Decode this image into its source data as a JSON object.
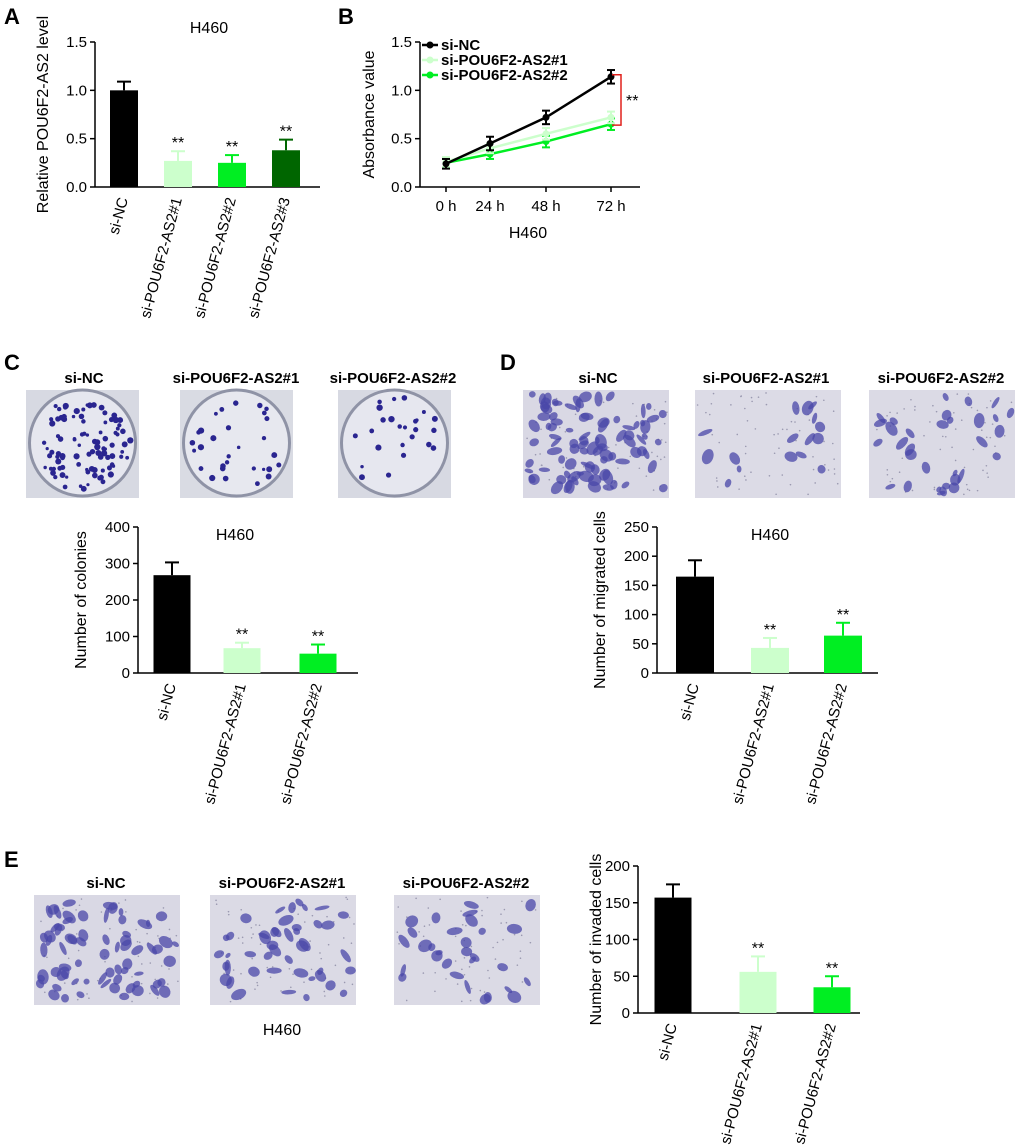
{
  "panels": {
    "A": {
      "letter": "A"
    },
    "B": {
      "letter": "B"
    },
    "C": {
      "letter": "C",
      "image_labels": [
        "si-NC",
        "si-POU6F2-AS2#1",
        "si-POU6F2-AS2#2"
      ]
    },
    "D": {
      "letter": "D",
      "image_labels": [
        "si-NC",
        "si-POU6F2-AS2#1",
        "si-POU6F2-AS2#2"
      ]
    },
    "E": {
      "letter": "E",
      "image_labels": [
        "si-NC",
        "si-POU6F2-AS2#1",
        "si-POU6F2-AS2#2"
      ],
      "caption": "H460"
    }
  },
  "colors": {
    "black": "#000000",
    "light_green": "#ccffcc",
    "green": "#00ee22",
    "dark_green": "#006600",
    "crystal_violet": "#3b3aa0",
    "sig_red": "#e0201c"
  },
  "chart_data": [
    {
      "id": "A",
      "type": "bar",
      "title": "H460",
      "ylabel": "Relative POU6F2-AS2 level",
      "ylim": [
        0,
        1.5
      ],
      "yticks": [
        0,
        0.5,
        1.0,
        1.5
      ],
      "ytick_labels": [
        "0.0",
        "0.5",
        "1.0",
        "1.5"
      ],
      "categories": [
        "si-NC",
        "si-POU6F2-AS2#1",
        "si-POU6F2-AS2#2",
        "si-POU6F2-AS2#3"
      ],
      "values": [
        1.0,
        0.27,
        0.25,
        0.38
      ],
      "errors": [
        0.09,
        0.1,
        0.08,
        0.11
      ],
      "significance": [
        "",
        "**",
        "**",
        "**"
      ],
      "bar_colors": [
        "#000000",
        "#ccffcc",
        "#00ee22",
        "#006600"
      ]
    },
    {
      "id": "B",
      "type": "line",
      "title": "H460",
      "ylabel": "Absorbance value",
      "ylim": [
        0,
        1.5
      ],
      "yticks": [
        0,
        0.5,
        1.0,
        1.5
      ],
      "ytick_labels": [
        "0.0",
        "0.5",
        "1.0",
        "1.5"
      ],
      "x": [
        "0 h",
        "24 h",
        "48 h",
        "72 h"
      ],
      "series": [
        {
          "name": "si-NC",
          "values": [
            0.24,
            0.45,
            0.72,
            1.14
          ],
          "errors": [
            0.05,
            0.07,
            0.07,
            0.07
          ],
          "color": "#000000"
        },
        {
          "name": "si-POU6F2-AS2#1",
          "values": [
            0.26,
            0.4,
            0.55,
            0.72
          ],
          "errors": [
            0.05,
            0.05,
            0.06,
            0.06
          ],
          "color": "#ccffcc"
        },
        {
          "name": "si-POU6F2-AS2#2",
          "values": [
            0.25,
            0.34,
            0.47,
            0.65
          ],
          "errors": [
            0.05,
            0.05,
            0.06,
            0.06
          ],
          "color": "#00ee22"
        }
      ],
      "legend": "top-left",
      "annotation": "**"
    },
    {
      "id": "C",
      "type": "bar",
      "title": "H460",
      "ylabel": "Number of colonies",
      "ylim": [
        0,
        400
      ],
      "yticks": [
        0,
        100,
        200,
        300,
        400
      ],
      "ytick_labels": [
        "0",
        "100",
        "200",
        "300",
        "400"
      ],
      "categories": [
        "si-NC",
        "si-POU6F2-AS2#1",
        "si-POU6F2-AS2#2"
      ],
      "values": [
        268,
        68,
        53
      ],
      "errors": [
        35,
        15,
        25
      ],
      "significance": [
        "",
        "**",
        "**"
      ],
      "bar_colors": [
        "#000000",
        "#ccffcc",
        "#00ee22"
      ]
    },
    {
      "id": "D",
      "type": "bar",
      "title": "H460",
      "ylabel": "Number of migrated cells",
      "ylim": [
        0,
        250
      ],
      "yticks": [
        0,
        50,
        100,
        150,
        200,
        250
      ],
      "ytick_labels": [
        "0",
        "50",
        "100",
        "150",
        "200",
        "250"
      ],
      "categories": [
        "si-NC",
        "si-POU6F2-AS2#1",
        "si-POU6F2-AS2#2"
      ],
      "values": [
        165,
        43,
        64
      ],
      "errors": [
        28,
        17,
        22
      ],
      "significance": [
        "",
        "**",
        "**"
      ],
      "bar_colors": [
        "#000000",
        "#ccffcc",
        "#00ee22"
      ]
    },
    {
      "id": "E",
      "type": "bar",
      "title": "",
      "ylabel": "Number of invaded cells",
      "ylim": [
        0,
        200
      ],
      "yticks": [
        0,
        50,
        100,
        150,
        200
      ],
      "ytick_labels": [
        "0",
        "50",
        "100",
        "150",
        "200"
      ],
      "categories": [
        "si-NC",
        "si-POU6F2-AS2#1",
        "si-POU6F2-AS2#2"
      ],
      "values": [
        157,
        56,
        35
      ],
      "errors": [
        18,
        21,
        15
      ],
      "significance": [
        "",
        "**",
        "**"
      ],
      "bar_colors": [
        "#000000",
        "#ccffcc",
        "#00ee22"
      ]
    }
  ]
}
